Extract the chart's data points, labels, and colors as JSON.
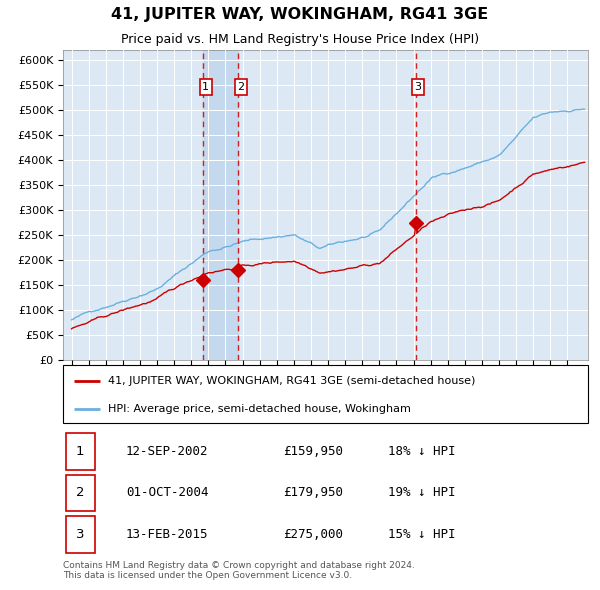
{
  "title": "41, JUPITER WAY, WOKINGHAM, RG41 3GE",
  "subtitle": "Price paid vs. HM Land Registry's House Price Index (HPI)",
  "footnote1": "Contains HM Land Registry data © Crown copyright and database right 2024.",
  "footnote2": "This data is licensed under the Open Government Licence v3.0.",
  "legend_line1": "41, JUPITER WAY, WOKINGHAM, RG41 3GE (semi-detached house)",
  "legend_line2": "HPI: Average price, semi-detached house, Wokingham",
  "transactions": [
    {
      "num": 1,
      "date": "12-SEP-2002",
      "price": "£159,950",
      "pct": "18% ↓ HPI"
    },
    {
      "num": 2,
      "date": "01-OCT-2004",
      "price": "£179,950",
      "pct": "19% ↓ HPI"
    },
    {
      "num": 3,
      "date": "13-FEB-2015",
      "price": "£275,000",
      "pct": "15% ↓ HPI"
    }
  ],
  "sale_dates": [
    2002.7,
    2004.75,
    2015.12
  ],
  "sale_prices": [
    159950,
    179950,
    275000
  ],
  "hpi_color": "#6ab0de",
  "price_color": "#cc0000",
  "vline_color": "#cc0000",
  "plot_bg_color": "#dce9f5",
  "grid_color": "#ffffff",
  "shade_color": "#c5d9ee",
  "ylim": [
    0,
    620000
  ],
  "yticks": [
    0,
    50000,
    100000,
    150000,
    200000,
    250000,
    300000,
    350000,
    400000,
    450000,
    500000,
    550000,
    600000
  ],
  "ytick_labels": [
    "£0",
    "£50K",
    "£100K",
    "£150K",
    "£200K",
    "£250K",
    "£300K",
    "£350K",
    "£400K",
    "£450K",
    "£500K",
    "£550K",
    "£600K"
  ],
  "xlim_start": 1994.5,
  "xlim_end": 2025.2,
  "xticks": [
    1995,
    1996,
    1997,
    1998,
    1999,
    2000,
    2001,
    2002,
    2003,
    2004,
    2005,
    2006,
    2007,
    2008,
    2009,
    2010,
    2011,
    2012,
    2013,
    2014,
    2015,
    2016,
    2017,
    2018,
    2019,
    2020,
    2021,
    2022,
    2023,
    2024
  ]
}
